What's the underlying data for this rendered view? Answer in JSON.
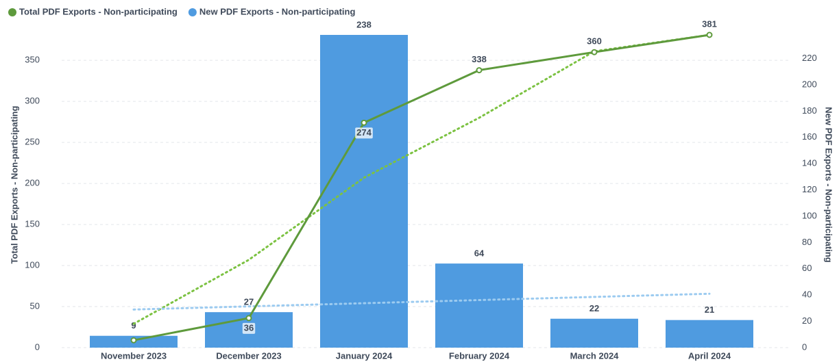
{
  "chart_data": {
    "type": "bar_line",
    "categories": [
      "November 2023",
      "December 2023",
      "January 2024",
      "February 2024",
      "March 2024",
      "April 2024"
    ],
    "series": [
      {
        "name": "Total PDF Exports - Non-participating",
        "type": "line",
        "color": "#5e9a3c",
        "axis": "y",
        "values": [
          9,
          36,
          274,
          338,
          360,
          381
        ]
      },
      {
        "name": "New PDF Exports - Non-participating",
        "type": "bar",
        "color": "#4f9be0",
        "axis": "y2",
        "values": [
          9,
          27,
          238,
          64,
          22,
          21
        ]
      }
    ],
    "trendlines": [
      {
        "color": "#7cc242",
        "axis": "y",
        "values": [
          29,
          107,
          207,
          280,
          361,
          381
        ]
      },
      {
        "color": "#9ccbf0",
        "axis": "y2",
        "values": [
          29,
          31.4,
          33.8,
          36.2,
          38.6,
          41
        ]
      }
    ],
    "ylabel": "Total PDF Exports - Non-participating",
    "y2label": "New PDF Exports - Non-participating",
    "ylim": [
      0,
      381
    ],
    "yticks": [
      0,
      50,
      100,
      150,
      200,
      250,
      300,
      350
    ],
    "y2lim": [
      0,
      238
    ],
    "y2ticks": [
      0,
      20,
      40,
      60,
      80,
      100,
      120,
      140,
      160,
      180,
      200,
      220
    ],
    "grid": true,
    "legend": "top-left"
  }
}
